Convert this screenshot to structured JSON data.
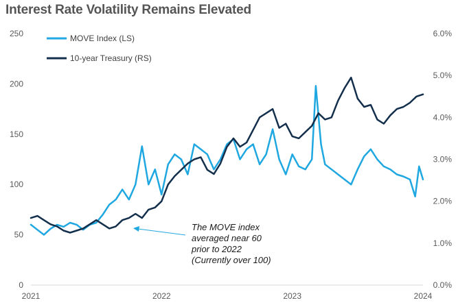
{
  "chart_data": {
    "type": "line",
    "title": "Interest Rate Volatility Remains Elevated",
    "x_tick_labels": [
      "2021",
      "2022",
      "2023",
      "2024"
    ],
    "x_range": [
      2021.0,
      2024.0
    ],
    "y_left": {
      "lim": [
        0,
        250
      ],
      "ticks": [
        "0",
        "50",
        "100",
        "150",
        "200",
        "250"
      ]
    },
    "y_right": {
      "lim": [
        0,
        6
      ],
      "ticks": [
        "0.0%",
        "1.0%",
        "2.0%",
        "3.0%",
        "4.0%",
        "5.0%",
        "6.0%"
      ]
    },
    "grid": false,
    "legend_position": "top-left",
    "series": [
      {
        "name": "MOVE Index (LS)",
        "axis": "left",
        "color": "#1ea7e0",
        "x": [
          2021.0,
          2021.05,
          2021.1,
          2021.15,
          2021.2,
          2021.25,
          2021.3,
          2021.35,
          2021.4,
          2021.45,
          2021.5,
          2021.55,
          2021.6,
          2021.65,
          2021.7,
          2021.75,
          2021.8,
          2021.85,
          2021.9,
          2021.95,
          2022.0,
          2022.05,
          2022.1,
          2022.15,
          2022.2,
          2022.25,
          2022.3,
          2022.35,
          2022.4,
          2022.45,
          2022.5,
          2022.55,
          2022.6,
          2022.65,
          2022.7,
          2022.75,
          2022.8,
          2022.85,
          2022.9,
          2022.95,
          2023.0,
          2023.05,
          2023.1,
          2023.15,
          2023.18,
          2023.22,
          2023.25,
          2023.3,
          2023.35,
          2023.4,
          2023.45,
          2023.5,
          2023.55,
          2023.6,
          2023.65,
          2023.7,
          2023.75,
          2023.8,
          2023.85,
          2023.9,
          2023.94,
          2023.97,
          2024.0
        ],
        "y": [
          60,
          55,
          50,
          56,
          60,
          58,
          62,
          60,
          55,
          60,
          62,
          70,
          80,
          85,
          95,
          85,
          100,
          138,
          100,
          115,
          90,
          120,
          130,
          125,
          110,
          140,
          135,
          130,
          115,
          125,
          140,
          145,
          125,
          135,
          140,
          120,
          130,
          155,
          125,
          110,
          130,
          118,
          115,
          125,
          198,
          140,
          120,
          115,
          110,
          105,
          100,
          115,
          128,
          135,
          125,
          118,
          115,
          110,
          108,
          105,
          88,
          118,
          105
        ]
      },
      {
        "name": "10-year Treasury (RS)",
        "axis": "right",
        "color": "#132f4c",
        "x": [
          2021.0,
          2021.05,
          2021.1,
          2021.15,
          2021.2,
          2021.25,
          2021.3,
          2021.35,
          2021.4,
          2021.45,
          2021.5,
          2021.55,
          2021.6,
          2021.65,
          2021.7,
          2021.75,
          2021.8,
          2021.85,
          2021.9,
          2021.95,
          2022.0,
          2022.05,
          2022.1,
          2022.15,
          2022.2,
          2022.25,
          2022.3,
          2022.35,
          2022.4,
          2022.45,
          2022.5,
          2022.55,
          2022.6,
          2022.65,
          2022.7,
          2022.75,
          2022.8,
          2022.85,
          2022.9,
          2022.95,
          2023.0,
          2023.05,
          2023.1,
          2023.15,
          2023.2,
          2023.25,
          2023.3,
          2023.35,
          2023.4,
          2023.45,
          2023.5,
          2023.55,
          2023.6,
          2023.65,
          2023.7,
          2023.75,
          2023.8,
          2023.85,
          2023.9,
          2023.95,
          2024.0
        ],
        "y": [
          1.6,
          1.65,
          1.55,
          1.45,
          1.4,
          1.3,
          1.25,
          1.3,
          1.35,
          1.45,
          1.55,
          1.45,
          1.35,
          1.4,
          1.55,
          1.6,
          1.7,
          1.6,
          1.8,
          1.85,
          2.0,
          2.4,
          2.6,
          2.75,
          2.9,
          3.0,
          3.05,
          2.75,
          2.65,
          2.9,
          3.3,
          3.5,
          3.3,
          3.4,
          3.7,
          4.0,
          4.1,
          4.2,
          3.75,
          3.85,
          3.55,
          3.5,
          3.65,
          3.8,
          4.1,
          3.95,
          4.0,
          4.4,
          4.7,
          4.95,
          4.45,
          4.25,
          4.3,
          3.95,
          3.85,
          4.05,
          4.2,
          4.25,
          4.35,
          4.5,
          4.55
        ]
      }
    ],
    "annotation": {
      "lines": [
        "The MOVE index",
        "averaged near 60",
        "prior to 2022",
        "(Currently over 100)"
      ]
    }
  }
}
